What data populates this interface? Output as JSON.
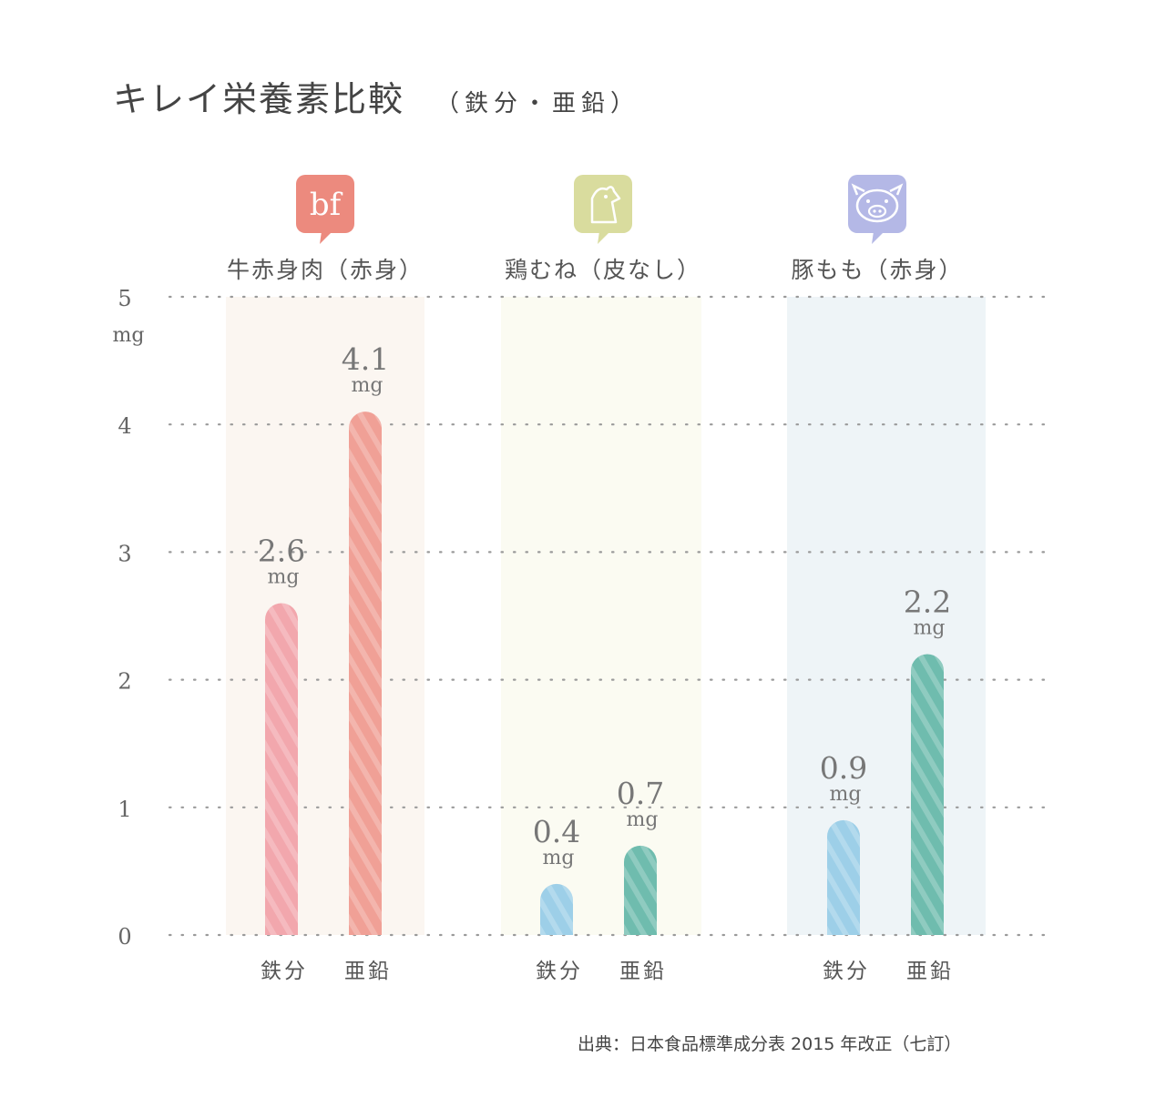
{
  "title": "キレイ栄養素比較",
  "subtitle": "（鉄分・亜鉛）",
  "source": "出典：日本食品標準成分表 2015 年改正（七訂）",
  "colors": {
    "iron_beef": "#f2a7ad",
    "zinc_beef": "#f0a096",
    "iron_blue": "#9dcfe8",
    "zinc_teal": "#6fbcae",
    "panel_beef": "#fbf6f1",
    "panel_chicken": "#fbfbf2",
    "panel_pork": "#eef4f7",
    "icon_beef": "#ec8a7e",
    "icon_chicken": "#d9dc9e",
    "icon_pork": "#b4b8e6",
    "grid": "#9a9a9a"
  },
  "chart_data": {
    "type": "bar",
    "ylim": [
      0,
      5
    ],
    "yticks": [
      "0",
      "1",
      "2",
      "3",
      "4",
      "5"
    ],
    "yunit": "mg",
    "grid": "dotted-horizontal",
    "groups": [
      {
        "name": "牛赤身肉（赤身）",
        "icon": "beef-icon",
        "icon_text": "bf",
        "bars": [
          {
            "label": "鉄分",
            "value": 2.6,
            "value_text": "2.6",
            "unit": "mg",
            "color_key": "iron_beef"
          },
          {
            "label": "亜鉛",
            "value": 4.1,
            "value_text": "4.1",
            "unit": "mg",
            "color_key": "zinc_beef"
          }
        ]
      },
      {
        "name": "鶏むね（皮なし）",
        "icon": "chicken-icon",
        "icon_text": "",
        "bars": [
          {
            "label": "鉄分",
            "value": 0.4,
            "value_text": "0.4",
            "unit": "mg",
            "color_key": "iron_blue"
          },
          {
            "label": "亜鉛",
            "value": 0.7,
            "value_text": "0.7",
            "unit": "mg",
            "color_key": "zinc_teal"
          }
        ]
      },
      {
        "name": "豚もも（赤身）",
        "icon": "pig-icon",
        "icon_text": "",
        "bars": [
          {
            "label": "鉄分",
            "value": 0.9,
            "value_text": "0.9",
            "unit": "mg",
            "color_key": "iron_blue"
          },
          {
            "label": "亜鉛",
            "value": 2.2,
            "value_text": "2.2",
            "unit": "mg",
            "color_key": "zinc_teal"
          }
        ]
      }
    ]
  }
}
